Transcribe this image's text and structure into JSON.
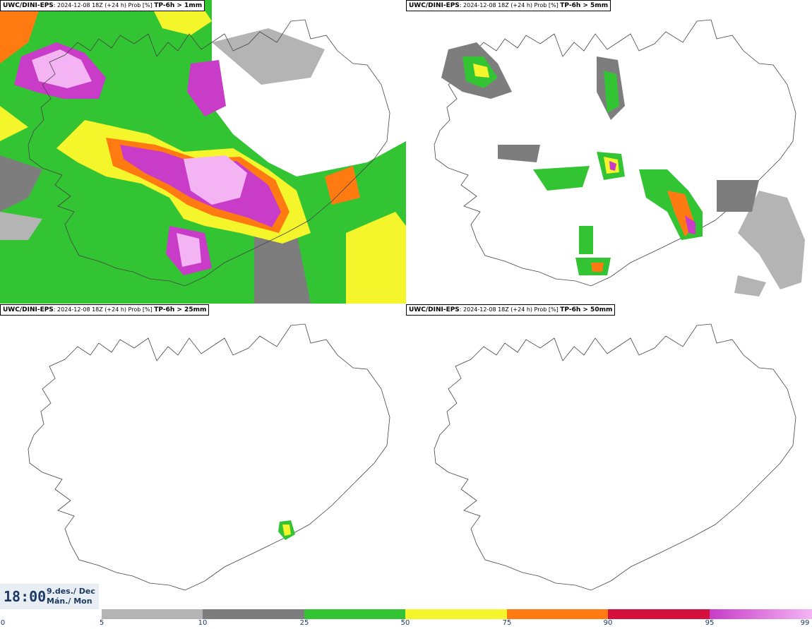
{
  "panels": [
    {
      "model": "UWC/DINI-EPS",
      "run": ": 2024-12-08 18Z (+24 h) Prob [%]",
      "param": "TP-6h > 1mm"
    },
    {
      "model": "UWC/DINI-EPS",
      "run": ": 2024-12-08 18Z (+24 h) Prob [%]",
      "param": "TP-6h > 5mm"
    },
    {
      "model": "UWC/DINI-EPS",
      "run": ": 2024-12-08 18Z (+24 h) Prob [%]",
      "param": "TP-6h > 25mm"
    },
    {
      "model": "UWC/DINI-EPS",
      "run": ": 2024-12-08 18Z (+24 h) Prob [%]",
      "param": "TP-6h > 50mm"
    }
  ],
  "time": {
    "clock": "18:00",
    "date_line1": "9.des./ Dec",
    "date_line2": "Mán./ Mon"
  },
  "legend": {
    "ticks": [
      "0",
      "5",
      "10",
      "25",
      "50",
      "75",
      "90",
      "95",
      "99"
    ],
    "colors": [
      "#ffffff",
      "#b4b4b4",
      "#7d7d7d",
      "#33c433",
      "#f5f52b",
      "#ff7a10",
      "#d6103c",
      "#c83cc8",
      "#f4b4f4"
    ]
  }
}
